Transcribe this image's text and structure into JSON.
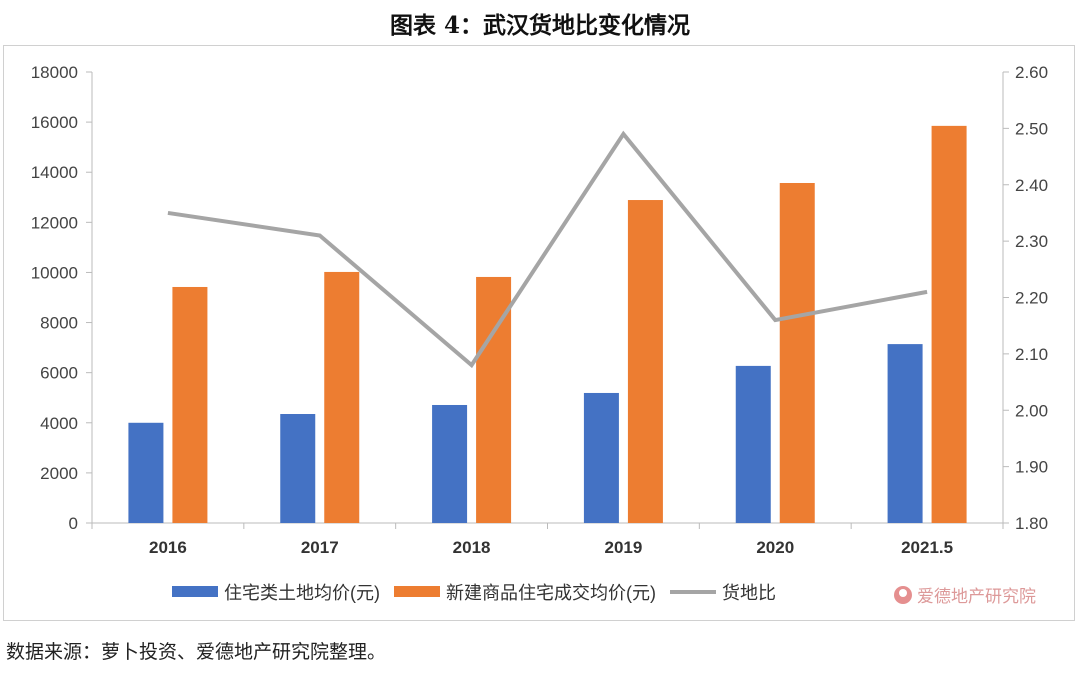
{
  "title": "图表 4：武汉货地比变化情况",
  "source": "数据来源：萝卜投资、爱德地产研究院整理。",
  "watermark": "爱德地产研究院",
  "chart_data": {
    "type": "bar",
    "categories": [
      "2016",
      "2017",
      "2018",
      "2019",
      "2020",
      "2021.5"
    ],
    "series": [
      {
        "name": "住宅类土地均价(元)",
        "type": "bar",
        "axis": "left",
        "color": "#4472C4",
        "values": [
          4000,
          4350,
          4710,
          5190,
          6270,
          7140
        ]
      },
      {
        "name": "新建商品住宅成交均价(元)",
        "type": "bar",
        "axis": "left",
        "color": "#ED7D31",
        "values": [
          9420,
          10020,
          9820,
          12890,
          13570,
          15850
        ]
      },
      {
        "name": "货地比",
        "type": "line",
        "axis": "right",
        "color": "#A5A5A5",
        "values": [
          2.35,
          2.31,
          2.08,
          2.49,
          2.16,
          2.21
        ]
      }
    ],
    "ylim": [
      0,
      18000
    ],
    "yticks": [
      "0",
      "2000",
      "4000",
      "6000",
      "8000",
      "10000",
      "12000",
      "14000",
      "16000",
      "18000"
    ],
    "y2lim": [
      1.8,
      2.6
    ],
    "y2ticks": [
      "1.80",
      "1.90",
      "2.00",
      "2.10",
      "2.20",
      "2.30",
      "2.40",
      "2.50",
      "2.60"
    ],
    "grid": false,
    "legend": "bottom"
  }
}
